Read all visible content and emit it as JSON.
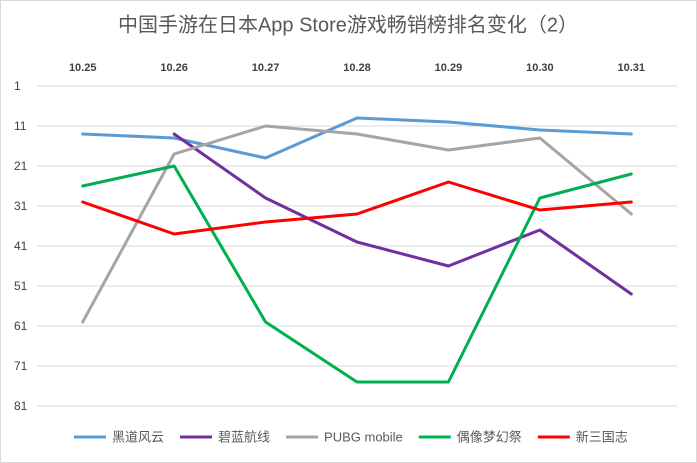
{
  "chart_data": {
    "type": "line",
    "title": "中国手游在日本App Store游戏畅销榜排名变化（2）",
    "categories": [
      "10.25",
      "10.26",
      "10.27",
      "10.28",
      "10.29",
      "10.30",
      "10.31"
    ],
    "series": [
      {
        "name": "黑道风云",
        "color": "#5b9bd5",
        "values": [
          13,
          14,
          19,
          9,
          10,
          12,
          13
        ]
      },
      {
        "name": "碧蓝航线",
        "color": "#7030a0",
        "values": [
          null,
          13,
          29,
          40,
          46,
          37,
          53
        ]
      },
      {
        "name": "PUBG mobile",
        "color": "#a5a5a5",
        "values": [
          60,
          18,
          11,
          13,
          17,
          14,
          33
        ]
      },
      {
        "name": "偶像梦幻祭",
        "color": "#00b050",
        "values": [
          26,
          21,
          60,
          75,
          75,
          29,
          23
        ]
      },
      {
        "name": "新三国志",
        "color": "#ff0000",
        "values": [
          30,
          38,
          35,
          33,
          25,
          32,
          30
        ]
      }
    ],
    "ylim": [
      1,
      81
    ],
    "yticks": [
      1,
      11,
      21,
      31,
      41,
      51,
      61,
      71,
      81
    ],
    "y_inverted": true,
    "grid": true,
    "legend": "bottom"
  }
}
